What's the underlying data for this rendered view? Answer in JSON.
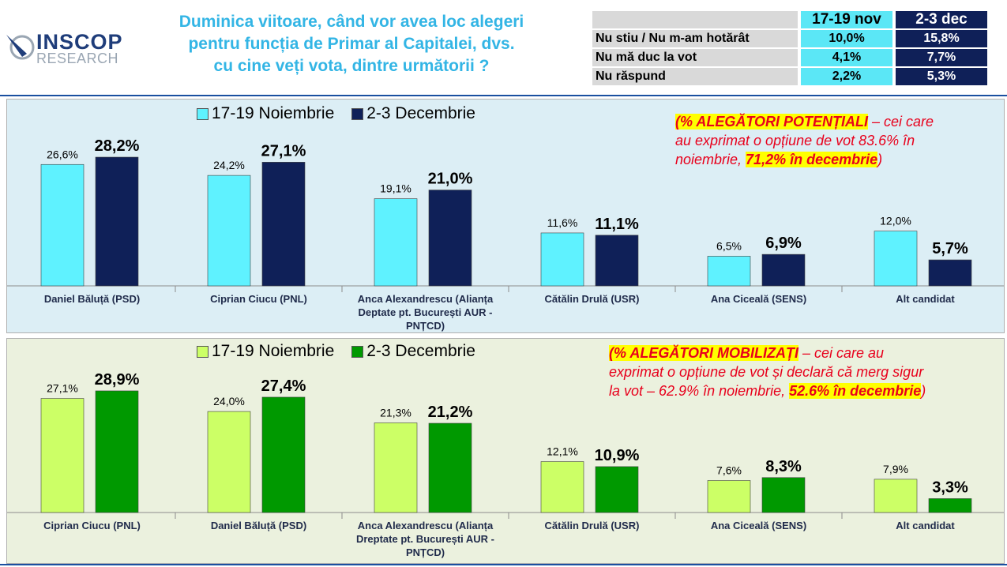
{
  "header": {
    "logo_text": "INSCOP",
    "logo_sub": "RESEARCH",
    "question_lines": [
      "Duminica viitoare, când vor avea loc alegeri",
      "pentru funcția de Primar al Capitalei, dvs.",
      "cu cine veți vota, dintre următorii ?"
    ]
  },
  "summary_table": {
    "col1": "17-19 nov",
    "col2": "2-3 dec",
    "rows": [
      {
        "label": "Nu stiu / Nu m-am hotărât",
        "v1": "10,0%",
        "v2": "15,8%"
      },
      {
        "label": "Nu mă duc la vot",
        "v1": "4,1%",
        "v2": "7,7%"
      },
      {
        "label": "Nu răspund",
        "v1": "2,2%",
        "v2": "5,3%"
      }
    ]
  },
  "colors": {
    "top_nov": "#5ff2ff",
    "top_dec": "#0f2058",
    "top_bg": "#dceef5",
    "bottom_nov": "#ccff66",
    "bottom_dec": "#009900",
    "bottom_bg": "#ebf1de",
    "note_red": "#e8001c",
    "highlight": "#ffff00"
  },
  "chart_data": [
    {
      "type": "bar",
      "series": [
        {
          "name": "17-19 Noiembrie",
          "values": [
            26.6,
            24.2,
            19.1,
            11.6,
            6.5,
            12.0
          ],
          "labels": [
            "26,6%",
            "24,2%",
            "19,1%",
            "11,6%",
            "6,5%",
            "12,0%"
          ]
        },
        {
          "name": "2-3 Decembrie",
          "values": [
            28.2,
            27.1,
            21.0,
            11.1,
            6.9,
            5.7
          ],
          "labels": [
            "28,2%",
            "27,1%",
            "21,0%",
            "11,1%",
            "6,9%",
            "5,7%"
          ]
        }
      ],
      "categories": [
        [
          "Daniel Băluță (PSD)"
        ],
        [
          "Ciprian Ciucu (PNL)"
        ],
        [
          "Anca Alexandrescu (Alianța",
          "Deptate pt. București AUR -",
          "PNȚCD)"
        ],
        [
          "Cătălin Drulă (USR)"
        ],
        [
          "Ana Ciceală (SENS)"
        ],
        [
          "Alt candidat"
        ]
      ],
      "note": {
        "prefix": "(% ",
        "bold": "ALEGĂTORI POTENȚIALI",
        "text1": " – cei care",
        "line2": "au exprimat o opțiune de vot 83.6% în",
        "line3": "noiembrie, ",
        "hl2": "71,2% în decembrie",
        "suffix": ")"
      }
    },
    {
      "type": "bar",
      "series": [
        {
          "name": "17-19 Noiembrie",
          "values": [
            27.1,
            24.0,
            21.3,
            12.1,
            7.6,
            7.9
          ],
          "labels": [
            "27,1%",
            "24,0%",
            "21,3%",
            "12,1%",
            "7,6%",
            "7,9%"
          ]
        },
        {
          "name": "2-3 Decembrie",
          "values": [
            28.9,
            27.4,
            21.2,
            10.9,
            8.3,
            3.3
          ],
          "labels": [
            "28,9%",
            "27,4%",
            "21,2%",
            "10,9%",
            "8,3%",
            "3,3%"
          ]
        }
      ],
      "categories": [
        [
          "Ciprian Ciucu (PNL)"
        ],
        [
          "Daniel Băluță (PSD)"
        ],
        [
          "Anca Alexandrescu (Alianța",
          "Dreptate pt. București AUR -",
          "PNȚCD)"
        ],
        [
          "Cătălin Drulă (USR)"
        ],
        [
          "Ana Ciceală (SENS)"
        ],
        [
          "Alt candidat"
        ]
      ],
      "note": {
        "prefix": "(% ",
        "bold": "ALEGĂTORI MOBILIZAȚI",
        "text1": " – cei care au",
        "line2": "exprimat o opțiune de vot și declară că merg sigur",
        "line3": "la vot – 62.9% în noiembrie, ",
        "hl2": "52.6% în decembrie",
        "suffix": ")"
      }
    }
  ]
}
